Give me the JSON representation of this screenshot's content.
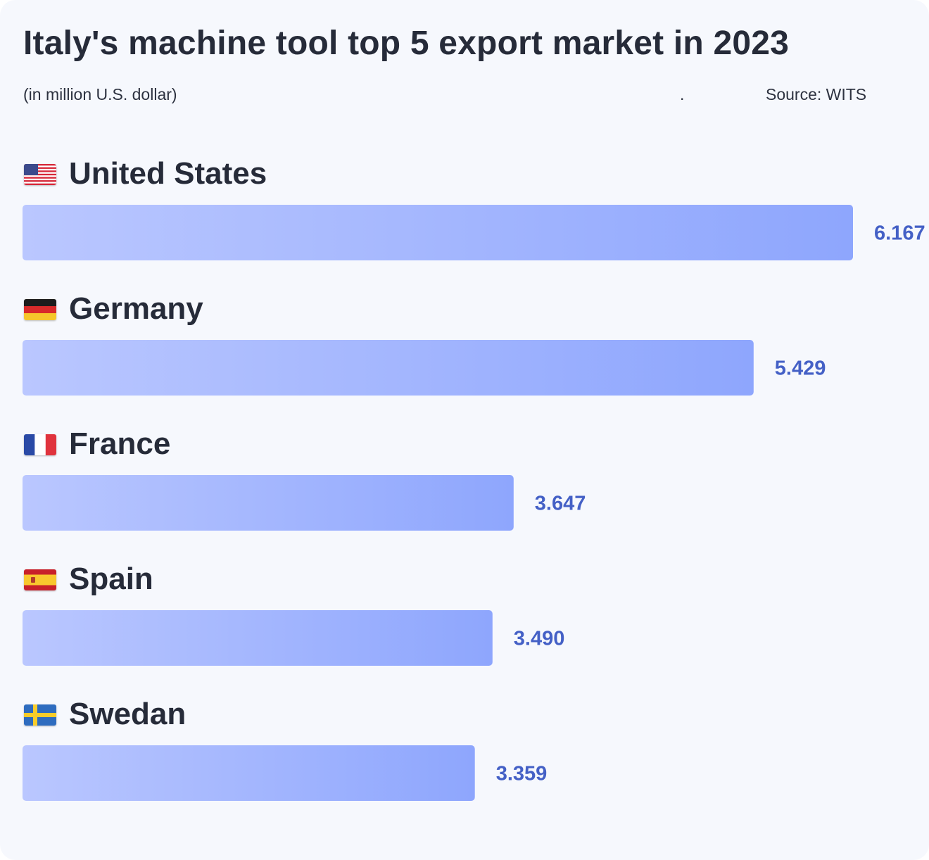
{
  "header": {
    "title": "Italy's machine tool top 5 export market in 2023",
    "unit": "(in million U.S. dollar)",
    "dot": ".",
    "source": "Source: WITS"
  },
  "colors": {
    "bar_start": "#bac7ff",
    "bar_end": "#8ea6fd",
    "value_text": "#4460c6"
  },
  "chart_data": {
    "type": "bar",
    "orientation": "horizontal",
    "title": "Italy's machine tool top 5 export market in 2023",
    "subtitle": "(in million U.S. dollar)",
    "categories": [
      "United States",
      "Germany",
      "France",
      "Spain",
      "Swedan"
    ],
    "values": [
      6.167,
      5.429,
      3.647,
      3.49,
      3.359
    ],
    "value_labels": [
      "6.167",
      "5.429",
      "3.647",
      "3.490",
      "3.359"
    ],
    "flags": [
      "us-flag-icon",
      "germany-flag-icon",
      "france-flag-icon",
      "spain-flag-icon",
      "sweden-flag-icon"
    ],
    "grid": false,
    "legend": "none"
  }
}
